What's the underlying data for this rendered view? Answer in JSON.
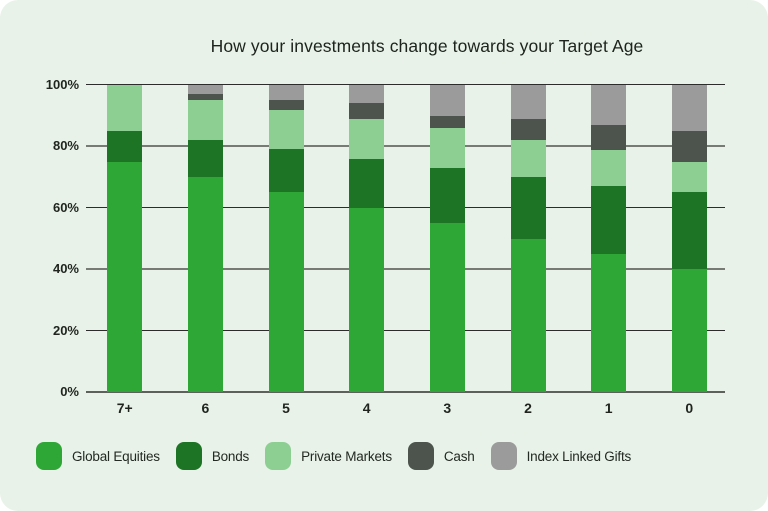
{
  "chart_data": {
    "type": "bar",
    "stacked": true,
    "title": "How your investments change towards your Target Age",
    "categories": [
      "7+",
      "6",
      "5",
      "4",
      "3",
      "2",
      "1",
      "0"
    ],
    "y_ticks": [
      "0%",
      "20%",
      "40%",
      "60%",
      "80%",
      "100%"
    ],
    "ylim": [
      0,
      100
    ],
    "units": "percent",
    "grid": "horizontal",
    "legend_position": "bottom",
    "series": [
      {
        "name": "Global Equities",
        "color": "#2fa737",
        "values": [
          75,
          70,
          65,
          60,
          55,
          50,
          45,
          40
        ]
      },
      {
        "name": "Bonds",
        "color": "#1d7424",
        "values": [
          10,
          12,
          14,
          16,
          18,
          20,
          22,
          25
        ]
      },
      {
        "name": "Private Markets",
        "color": "#8dcf93",
        "values": [
          15,
          13,
          13,
          13,
          13,
          12,
          12,
          10
        ]
      },
      {
        "name": "Cash",
        "color": "#4d534d",
        "values": [
          0,
          2,
          3,
          5,
          4,
          7,
          8,
          10
        ]
      },
      {
        "name": "Index Linked Gifts",
        "color": "#9b9b9b",
        "values": [
          0,
          3,
          5,
          6,
          10,
          11,
          13,
          15
        ]
      }
    ]
  },
  "colors": {
    "page_background": "#ffffff",
    "card_background": "#e8f2e8",
    "grid_major": "#2c2c2c",
    "grid_minor": "#767c74",
    "text": "#1f241f"
  }
}
